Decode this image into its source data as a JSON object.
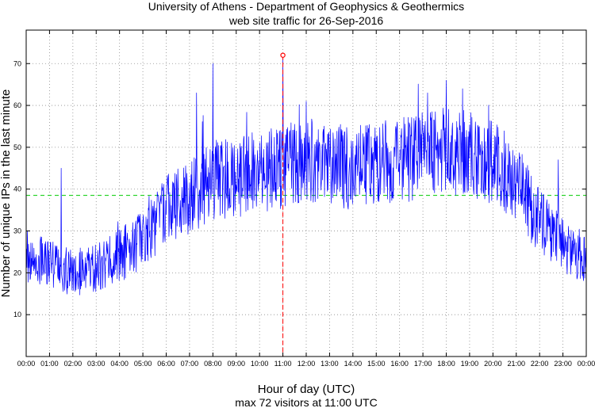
{
  "chart_data": {
    "type": "line",
    "title": "University of Athens - Department of Geophysics & Geothermics",
    "subtitle": "web site traffic for 26-Sep-2016",
    "xlabel": "Hour of day (UTC)",
    "ylabel": "Number of unique IPs in the last minute",
    "footer": "max 72 visitors at 11:00 UTC",
    "xlim": [
      0,
      24
    ],
    "ylim": [
      0,
      78
    ],
    "x_ticks": [
      0,
      1,
      2,
      3,
      4,
      5,
      6,
      7,
      8,
      9,
      10,
      11,
      12,
      13,
      14,
      15,
      16,
      17,
      18,
      19,
      20,
      21,
      22,
      23,
      24
    ],
    "x_tick_labels": [
      "00:00",
      "01:00",
      "02:00",
      "03:00",
      "04:00",
      "05:00",
      "06:00",
      "07:00",
      "08:00",
      "09:00",
      "10:00",
      "11:00",
      "12:00",
      "13:00",
      "14:00",
      "15:00",
      "16:00",
      "17:00",
      "18:00",
      "19:00",
      "20:00",
      "21:00",
      "22:00",
      "23:00",
      "00:00"
    ],
    "y_ticks": [
      10,
      20,
      30,
      40,
      50,
      60,
      70
    ],
    "y_tick_labels": [
      "10",
      "20",
      "30",
      "40",
      "50",
      "60",
      "70"
    ],
    "grid": true,
    "series_color": "#0000ff",
    "trend": {
      "description": "approximate hourly mean of minute-resolution visitor counts",
      "x": [
        0,
        1,
        2,
        3,
        4,
        5,
        6,
        7,
        8,
        9,
        10,
        11,
        12,
        13,
        14,
        15,
        16,
        17,
        18,
        19,
        20,
        21,
        22,
        23,
        24
      ],
      "y": [
        24,
        22,
        20,
        21,
        24,
        28,
        35,
        38,
        42,
        43,
        44,
        45,
        47,
        46,
        45,
        46,
        47,
        48,
        50,
        48,
        46,
        42,
        32,
        27,
        23
      ]
    },
    "spikes": [
      {
        "x": 0.05,
        "y": 30
      },
      {
        "x": 1.5,
        "y": 45
      },
      {
        "x": 7.3,
        "y": 63
      },
      {
        "x": 8.0,
        "y": 70
      },
      {
        "x": 11.0,
        "y": 72
      },
      {
        "x": 12.0,
        "y": 61
      },
      {
        "x": 17.2,
        "y": 63
      },
      {
        "x": 18.0,
        "y": 66
      },
      {
        "x": 18.7,
        "y": 64
      },
      {
        "x": 22.8,
        "y": 47
      }
    ],
    "mean_line": {
      "y": 38.5,
      "color": "#00cc00",
      "style": "dashed"
    },
    "max_marker": {
      "x": 11.0,
      "y": 72,
      "color": "#ff0000"
    }
  }
}
